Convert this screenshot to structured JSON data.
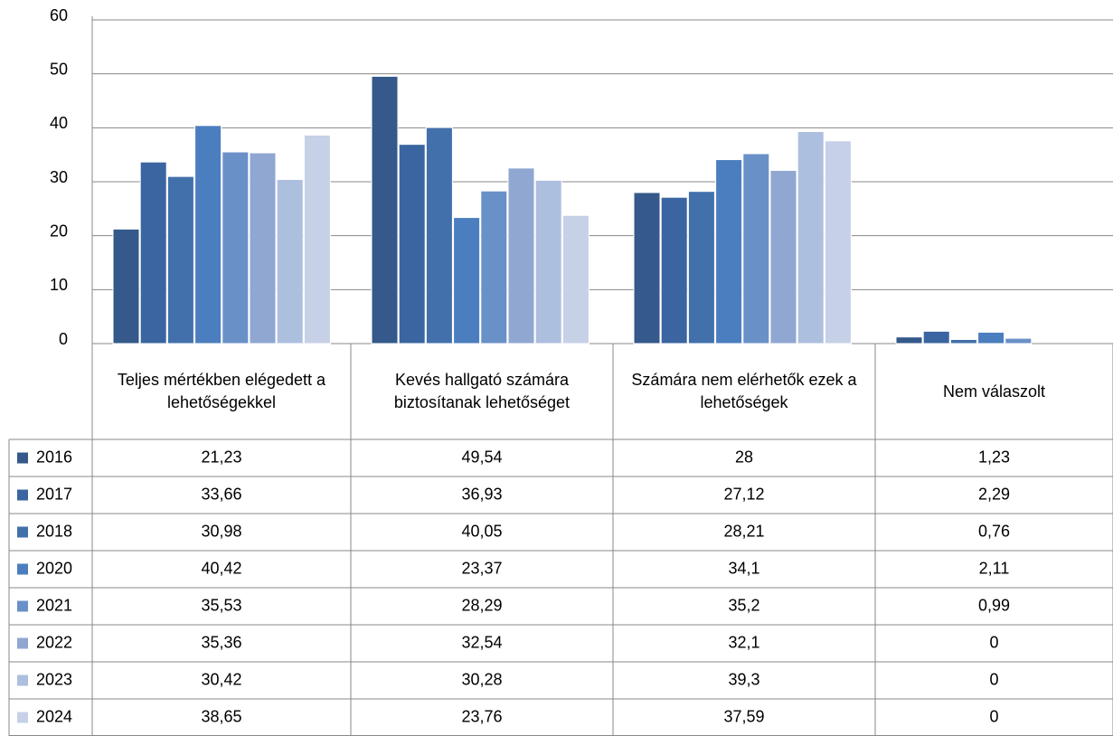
{
  "chart_data": {
    "type": "bar",
    "categories": [
      "Teljes mértékben elégedett a lehetőségekkel",
      "Kevés hallgató számára biztosítanak lehetőséget",
      "Számára nem elérhetők ezek a lehetőségek",
      "Nem válaszolt"
    ],
    "series": [
      {
        "name": "2016",
        "color": "#34598a",
        "values": [
          21.23,
          49.54,
          28,
          1.23
        ],
        "value_labels": [
          "21,23",
          "49,54",
          "28",
          "1,23"
        ]
      },
      {
        "name": "2017",
        "color": "#3a65a0",
        "values": [
          33.66,
          36.93,
          27.12,
          2.29
        ],
        "value_labels": [
          "33,66",
          "36,93",
          "27,12",
          "2,29"
        ]
      },
      {
        "name": "2018",
        "color": "#4270ab",
        "values": [
          30.98,
          40.05,
          28.21,
          0.76
        ],
        "value_labels": [
          "30,98",
          "40,05",
          "28,21",
          "0,76"
        ]
      },
      {
        "name": "2020",
        "color": "#4b7ebe",
        "values": [
          40.42,
          23.37,
          34.1,
          2.11
        ],
        "value_labels": [
          "40,42",
          "23,37",
          "34,1",
          "2,11"
        ]
      },
      {
        "name": "2021",
        "color": "#6a90c8",
        "values": [
          35.53,
          28.29,
          35.2,
          0.99
        ],
        "value_labels": [
          "35,53",
          "28,29",
          "35,2",
          "0,99"
        ]
      },
      {
        "name": "2022",
        "color": "#8fa7d1",
        "values": [
          35.36,
          32.54,
          32.1,
          0
        ],
        "value_labels": [
          "35,36",
          "32,54",
          "32,1",
          "0"
        ]
      },
      {
        "name": "2023",
        "color": "#adbfdf",
        "values": [
          30.42,
          30.28,
          39.3,
          0
        ],
        "value_labels": [
          "30,42",
          "30,28",
          "39,3",
          "0"
        ]
      },
      {
        "name": "2024",
        "color": "#c6d1e7",
        "values": [
          38.65,
          23.76,
          37.59,
          0
        ],
        "value_labels": [
          "38,65",
          "23,76",
          "37,59",
          "0"
        ]
      }
    ],
    "ylim": [
      0,
      60
    ],
    "yticks": [
      0,
      10,
      20,
      30,
      40,
      50,
      60
    ],
    "grid": true,
    "legend": "table"
  }
}
